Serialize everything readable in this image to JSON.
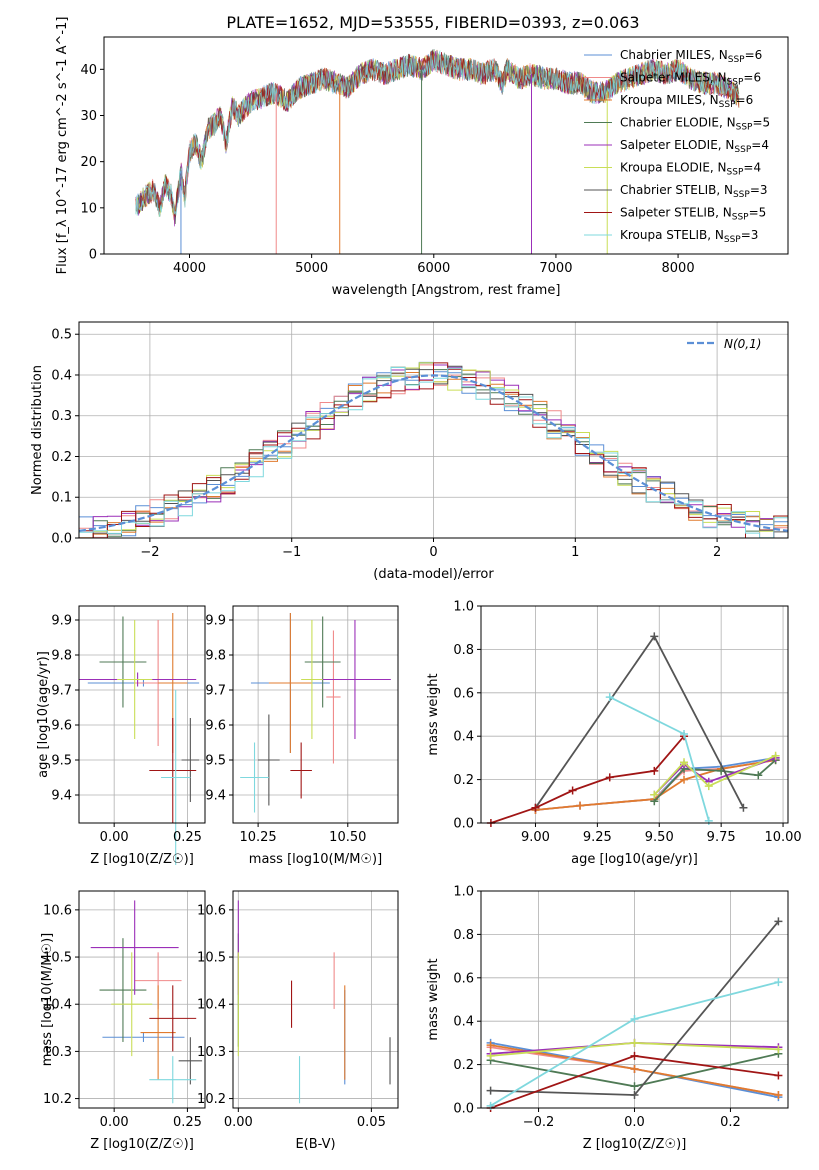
{
  "figure_title": "PLATE=1652, MJD=53555, FIBERID=0393, z=0.063",
  "series_colors": [
    "#5b8fd6",
    "#f08a8a",
    "#e07b2f",
    "#4f7a55",
    "#9b2fb8",
    "#c9de57",
    "#555555",
    "#a01515",
    "#7fd8de"
  ],
  "legend_entries": [
    "Chabrier MILES, N_SSP=6",
    "Salpeter MILES, N_SSP=6",
    "Kroupa MILES, N_SSP=6",
    "Chabrier ELODIE, N_SSP=5",
    "Salpeter ELODIE, N_SSP=4",
    "Kroupa ELODIE, N_SSP=4",
    "Chabrier STELIB, N_SSP=3",
    "Salpeter STELIB, N_SSP=5",
    "Kroupa STELIB, N_SSP=3"
  ],
  "chart_data": [
    {
      "id": "spectrum",
      "type": "line",
      "xlabel": "wavelength [Angstrom, rest frame]",
      "ylabel": "Flux [f_λ 10^-17 erg cm^-2 s^-1 A^-1]",
      "xlim": [
        3300,
        8900
      ],
      "ylim": [
        0,
        47
      ],
      "xticks": [
        4000,
        5000,
        6000,
        7000,
        8000
      ],
      "yticks": [
        0,
        10,
        20,
        30,
        40
      ],
      "grid": false,
      "legend_position": "top-right",
      "envelope_wavelength": [
        3560,
        3620,
        3700,
        3760,
        3800,
        3850,
        3880,
        3930,
        3960,
        4000,
        4050,
        4100,
        4150,
        4200,
        4250,
        4300,
        4350,
        4400,
        4500,
        4600,
        4700,
        4800,
        4900,
        5000,
        5100,
        5200,
        5300,
        5400,
        5500,
        5600,
        5700,
        5800,
        5900,
        6000,
        6100,
        6200,
        6300,
        6400,
        6500,
        6560,
        6600,
        6700,
        6800,
        6900,
        7000,
        7100,
        7200,
        7300,
        7400,
        7500,
        7600,
        7700,
        7800,
        7900,
        8000,
        8100,
        8200,
        8300,
        8400,
        8500
      ],
      "envelope_flux": [
        10,
        12,
        14,
        10,
        15,
        13,
        8,
        18,
        12,
        22,
        24,
        20,
        27,
        28,
        30,
        24,
        32,
        30,
        33,
        34,
        35,
        33,
        36,
        37,
        38,
        37,
        36,
        39,
        40,
        39,
        40,
        41,
        40,
        42,
        41,
        40,
        40,
        39,
        40,
        37,
        40,
        38,
        39,
        38,
        38,
        37,
        37,
        35,
        35,
        37,
        38,
        39,
        40,
        39,
        40,
        38,
        37,
        37,
        36,
        34
      ],
      "outlier_spikes_x": [
        3930,
        4710,
        5230,
        5900,
        6800,
        7420
      ],
      "annotations": []
    },
    {
      "id": "residual-histogram",
      "type": "line",
      "xlabel": "(data-model)/error",
      "ylabel": "Normed distribution",
      "xlim": [
        -2.5,
        2.5
      ],
      "ylim": [
        0,
        0.53
      ],
      "xticks": [
        -2,
        -1,
        0,
        1,
        2
      ],
      "yticks": [
        0.0,
        0.1,
        0.2,
        0.3,
        0.4,
        0.5
      ],
      "grid": true,
      "legend_label": "N(0,1)",
      "legend_position": "top-right",
      "bin_width": 0.1
    },
    {
      "id": "age-vs-Z",
      "type": "scatter",
      "xlabel": "Z [log10(Z/Z☉)]",
      "ylabel": "age [log10(age/yr)]",
      "xlim": [
        -0.12,
        0.31
      ],
      "ylim": [
        9.32,
        9.94
      ],
      "xticks": [
        0.0,
        0.25
      ],
      "yticks": [
        9.4,
        9.5,
        9.6,
        9.7,
        9.8,
        9.9
      ],
      "grid": true,
      "points": [
        {
          "x": 0.1,
          "y": 9.72,
          "xerr": 0.19,
          "yerr": 0.01
        },
        {
          "x": 0.15,
          "y": 9.72,
          "xerr": 0.08,
          "yerr": 0.18
        },
        {
          "x": 0.2,
          "y": 9.72,
          "xerr": 0.05,
          "yerr": 0.2
        },
        {
          "x": 0.03,
          "y": 9.78,
          "xerr": 0.08,
          "yerr": 0.13
        },
        {
          "x": 0.08,
          "y": 9.73,
          "xerr": 0.2,
          "yerr": 0.02
        },
        {
          "x": 0.07,
          "y": 9.73,
          "xerr": 0.06,
          "yerr": 0.17
        },
        {
          "x": 0.26,
          "y": 9.5,
          "xerr": 0.03,
          "yerr": 0.12
        },
        {
          "x": 0.2,
          "y": 9.47,
          "xerr": 0.08,
          "yerr": 0.15
        },
        {
          "x": 0.21,
          "y": 9.45,
          "xerr": 0.05,
          "yerr": 0.25
        }
      ]
    },
    {
      "id": "age-vs-mass",
      "type": "scatter",
      "xlabel": "mass [log10(M/M☉)]",
      "ylabel": "",
      "xlim": [
        10.18,
        10.64
      ],
      "ylim": [
        9.32,
        9.94
      ],
      "xticks": [
        10.25,
        10.5
      ],
      "yticks": [
        9.4,
        9.5,
        9.6,
        9.7,
        9.8,
        9.9
      ],
      "grid": true,
      "points": [
        {
          "x": 10.34,
          "y": 9.72,
          "xerr": 0.11,
          "yerr": 0.2
        },
        {
          "x": 10.46,
          "y": 9.68,
          "xerr": 0.02,
          "yerr": 0.19
        },
        {
          "x": 10.34,
          "y": 9.72,
          "xerr": 0.06,
          "yerr": 0.2
        },
        {
          "x": 10.43,
          "y": 9.78,
          "xerr": 0.05,
          "yerr": 0.13
        },
        {
          "x": 10.52,
          "y": 9.73,
          "xerr": 0.1,
          "yerr": 0.17
        },
        {
          "x": 10.4,
          "y": 9.73,
          "xerr": 0.03,
          "yerr": 0.17
        },
        {
          "x": 10.28,
          "y": 9.5,
          "xerr": 0.03,
          "yerr": 0.13
        },
        {
          "x": 10.37,
          "y": 9.47,
          "xerr": 0.03,
          "yerr": 0.08
        },
        {
          "x": 10.24,
          "y": 9.45,
          "xerr": 0.04,
          "yerr": 0.1
        }
      ]
    },
    {
      "id": "mass-weight-vs-age",
      "type": "line",
      "xlabel": "age [log10(age/yr)]",
      "ylabel": "mass weight",
      "xlim": [
        8.78,
        10.02
      ],
      "ylim": [
        0,
        1
      ],
      "xticks": [
        9.0,
        9.25,
        9.5,
        9.75,
        10.0
      ],
      "yticks": [
        0.0,
        0.2,
        0.4,
        0.6,
        0.8,
        1.0
      ],
      "grid": true,
      "series": [
        {
          "x": [
            9.0,
            9.18,
            9.48,
            9.6,
            9.75,
            9.97
          ],
          "y": [
            0.06,
            0.08,
            0.11,
            0.25,
            0.26,
            0.3
          ]
        },
        {
          "x": [
            9.0,
            9.18,
            9.48,
            9.6,
            9.75,
            9.97
          ],
          "y": [
            0.06,
            0.08,
            0.11,
            0.24,
            0.25,
            0.29
          ]
        },
        {
          "x": [
            9.0,
            9.18,
            9.48,
            9.6,
            9.75,
            9.97
          ],
          "y": [
            0.06,
            0.08,
            0.11,
            0.2,
            0.25,
            0.29
          ]
        },
        {
          "x": [
            9.48,
            9.6,
            9.75,
            9.9,
            9.97
          ],
          "y": [
            0.1,
            0.25,
            0.24,
            0.22,
            0.29
          ]
        },
        {
          "x": [
            9.48,
            9.6,
            9.7,
            9.97
          ],
          "y": [
            0.13,
            0.27,
            0.19,
            0.3
          ]
        },
        {
          "x": [
            9.48,
            9.6,
            9.7,
            9.97
          ],
          "y": [
            0.13,
            0.28,
            0.17,
            0.31
          ]
        },
        {
          "x": [
            9.0,
            9.48,
            9.84
          ],
          "y": [
            0.07,
            0.86,
            0.07
          ]
        },
        {
          "x": [
            8.82,
            9.0,
            9.15,
            9.3,
            9.48,
            9.6
          ],
          "y": [
            0.0,
            0.07,
            0.15,
            0.21,
            0.24,
            0.4
          ]
        },
        {
          "x": [
            9.3,
            9.6,
            9.7
          ],
          "y": [
            0.58,
            0.41,
            0.01
          ]
        }
      ]
    },
    {
      "id": "mass-vs-Z",
      "type": "scatter",
      "xlabel": "Z [log10(Z/Z☉)]",
      "ylabel": "mass [log10(M/M☉)]",
      "xlim": [
        -0.12,
        0.31
      ],
      "ylim": [
        10.18,
        10.64
      ],
      "xticks": [
        0.0,
        0.25
      ],
      "yticks": [
        10.2,
        10.3,
        10.4,
        10.5,
        10.6
      ],
      "grid": true,
      "points": [
        {
          "x": 0.1,
          "y": 10.33,
          "xerr": 0.14,
          "yerr": 0.01
        },
        {
          "x": 0.15,
          "y": 10.45,
          "xerr": 0.08,
          "yerr": 0.06
        },
        {
          "x": 0.15,
          "y": 10.34,
          "xerr": 0.06,
          "yerr": 0.1
        },
        {
          "x": 0.03,
          "y": 10.43,
          "xerr": 0.08,
          "yerr": 0.11
        },
        {
          "x": 0.07,
          "y": 10.52,
          "xerr": 0.15,
          "yerr": 0.1
        },
        {
          "x": 0.06,
          "y": 10.4,
          "xerr": 0.07,
          "yerr": 0.11
        },
        {
          "x": 0.26,
          "y": 10.28,
          "xerr": 0.04,
          "yerr": 0.05
        },
        {
          "x": 0.2,
          "y": 10.37,
          "xerr": 0.08,
          "yerr": 0.07
        },
        {
          "x": 0.2,
          "y": 10.24,
          "xerr": 0.08,
          "yerr": 0.05
        }
      ]
    },
    {
      "id": "mass-vs-ebv",
      "type": "scatter",
      "xlabel": "E(B-V)",
      "ylabel": "",
      "xlim": [
        -0.002,
        0.06
      ],
      "ylim": [
        10.18,
        10.64
      ],
      "xticks": [
        0.0,
        0.05
      ],
      "yticks": [
        10.2,
        10.3,
        10.4,
        10.5,
        10.6
      ],
      "grid": true,
      "points": [
        {
          "x": 0.04,
          "y": 10.33,
          "xerr": 0,
          "yerr": 0.1
        },
        {
          "x": 0.036,
          "y": 10.45,
          "xerr": 0,
          "yerr": 0.06
        },
        {
          "x": 0.04,
          "y": 10.34,
          "xerr": 0,
          "yerr": 0.1
        },
        {
          "x": 0.0,
          "y": 10.43,
          "xerr": 0,
          "yerr": 0.12
        },
        {
          "x": 0.0,
          "y": 10.52,
          "xerr": 0,
          "yerr": 0.1
        },
        {
          "x": 0.0,
          "y": 10.4,
          "xerr": 0,
          "yerr": 0.11
        },
        {
          "x": 0.057,
          "y": 10.28,
          "xerr": 0,
          "yerr": 0.05
        },
        {
          "x": 0.02,
          "y": 10.4,
          "xerr": 0,
          "yerr": 0.05
        },
        {
          "x": 0.023,
          "y": 10.24,
          "xerr": 0,
          "yerr": 0.05
        }
      ]
    },
    {
      "id": "mass-weight-vs-Z",
      "type": "line",
      "xlabel": "Z [log10(Z/Z☉)]",
      "ylabel": "mass weight",
      "xlim": [
        -0.32,
        0.32
      ],
      "ylim": [
        0,
        1
      ],
      "xticks": [
        -0.2,
        0.0,
        0.2
      ],
      "yticks": [
        0.0,
        0.2,
        0.4,
        0.6,
        0.8,
        1.0
      ],
      "grid": true,
      "series": [
        {
          "x": [
            -0.3,
            0.0,
            0.3
          ],
          "y": [
            0.3,
            0.18,
            0.05
          ]
        },
        {
          "x": [
            -0.3,
            0.0,
            0.3
          ],
          "y": [
            0.28,
            0.18,
            0.06
          ]
        },
        {
          "x": [
            -0.3,
            0.0,
            0.3
          ],
          "y": [
            0.29,
            0.18,
            0.06
          ]
        },
        {
          "x": [
            -0.3,
            0.0,
            0.3
          ],
          "y": [
            0.22,
            0.1,
            0.25
          ]
        },
        {
          "x": [
            -0.3,
            0.0,
            0.3
          ],
          "y": [
            0.25,
            0.3,
            0.28
          ]
        },
        {
          "x": [
            -0.3,
            0.0,
            0.3
          ],
          "y": [
            0.24,
            0.3,
            0.27
          ]
        },
        {
          "x": [
            -0.3,
            0.0,
            0.3
          ],
          "y": [
            0.08,
            0.06,
            0.86
          ]
        },
        {
          "x": [
            -0.3,
            0.0,
            0.3
          ],
          "y": [
            0.0,
            0.24,
            0.15
          ]
        },
        {
          "x": [
            -0.3,
            0.0,
            0.3
          ],
          "y": [
            0.01,
            0.41,
            0.58
          ]
        }
      ]
    }
  ]
}
